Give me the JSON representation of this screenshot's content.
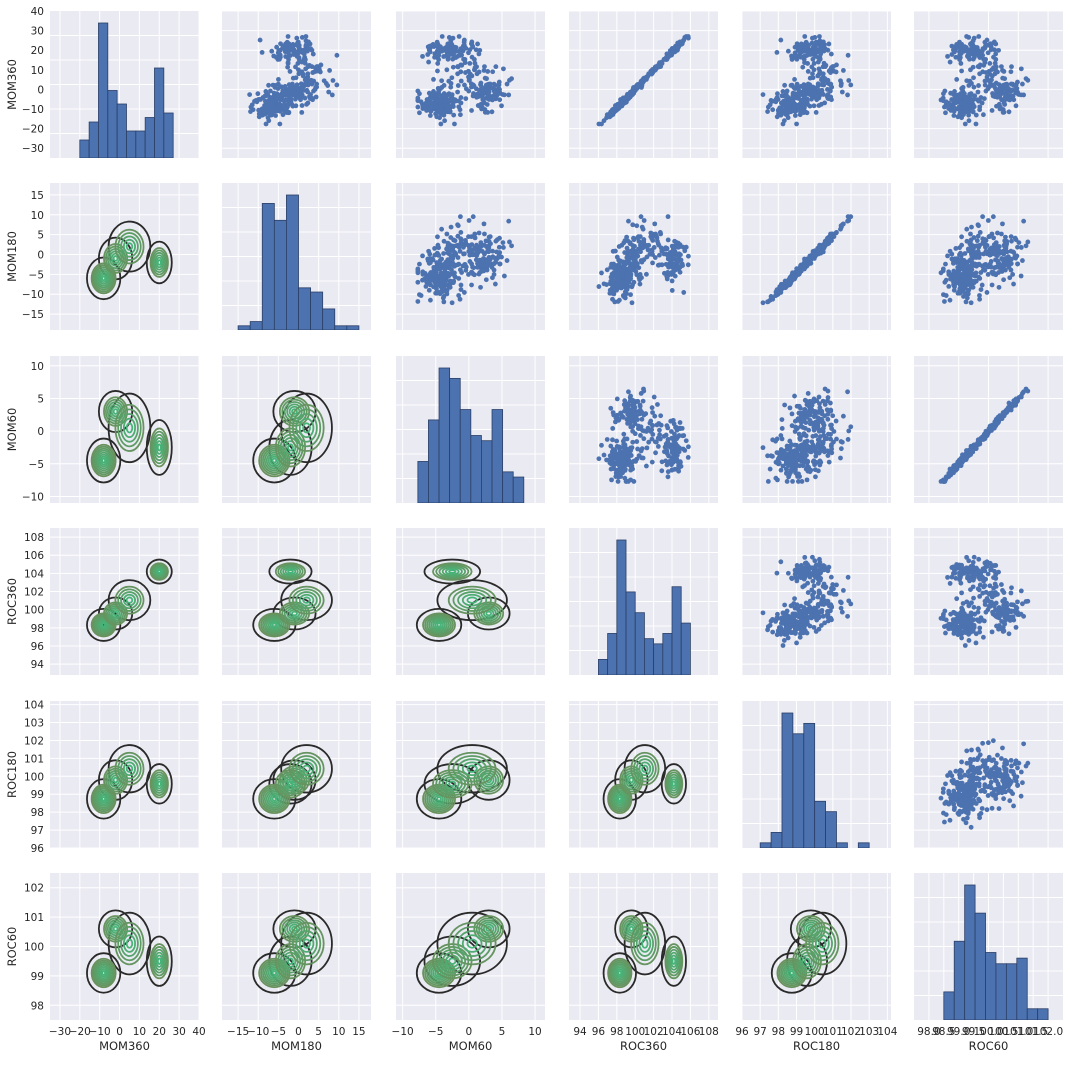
{
  "figure": {
    "type": "pairplot",
    "background": "#ffffff",
    "panel_bg": "#eaeaf2",
    "grid_color": "#ffffff"
  },
  "colors": {
    "scatter": "#4c72b0",
    "hist_fill": "#4c72b0",
    "hist_edge": "#2b3f66",
    "kde_inner": "#55a868",
    "kde_outer": "#2a2a2a"
  },
  "chart_data": {
    "type": "pairplot",
    "variables": [
      "MOM360",
      "MOM180",
      "MOM60",
      "ROC360",
      "ROC180",
      "ROC60"
    ],
    "upper_triangle": "scatter",
    "diagonal": "histogram",
    "lower_triangle": "kde_contour",
    "axes": [
      {
        "name": "MOM360",
        "lim": [
          -35,
          40
        ],
        "ticks": [
          "−30",
          "−20",
          "−10",
          "0",
          "10",
          "20",
          "30",
          "40"
        ],
        "tick_values": [
          -30,
          -20,
          -10,
          0,
          10,
          20,
          30,
          40
        ]
      },
      {
        "name": "MOM180",
        "lim": [
          -19,
          18
        ],
        "ticks": [
          "−15",
          "−10",
          "−5",
          "0",
          "5",
          "10",
          "15"
        ],
        "tick_values": [
          -15,
          -10,
          -5,
          0,
          5,
          10,
          15
        ]
      },
      {
        "name": "MOM60",
        "lim": [
          -11,
          11.5
        ],
        "ticks": [
          "−10",
          "−5",
          "0",
          "5",
          "10"
        ],
        "tick_values": [
          -10,
          -5,
          0,
          5,
          10
        ]
      },
      {
        "name": "ROC360",
        "lim": [
          92.8,
          109
        ],
        "ticks": [
          "94",
          "96",
          "98",
          "100",
          "102",
          "104",
          "106",
          "108"
        ],
        "tick_values": [
          94,
          96,
          98,
          100,
          102,
          104,
          106,
          108
        ]
      },
      {
        "name": "ROC180",
        "lim": [
          96,
          104.2
        ],
        "ticks": [
          "96",
          "97",
          "98",
          "99",
          "100",
          "101",
          "102",
          "103",
          "104"
        ],
        "tick_values": [
          96,
          97,
          98,
          99,
          100,
          101,
          102,
          103,
          104
        ]
      },
      {
        "name": "ROC60",
        "lim": [
          97.5,
          102.5
        ],
        "ticks": [
          "98",
          "99",
          "100",
          "101",
          "102"
        ],
        "tick_values": [
          98,
          99,
          100,
          101,
          102
        ]
      }
    ],
    "row_ticks": {
      "MOM360": [
        "40",
        "30",
        "20",
        "10",
        "0",
        "−10",
        "−20",
        "−30"
      ],
      "MOM180": [
        "15",
        "10",
        "5",
        "0",
        "−5",
        "−10",
        "−15"
      ],
      "MOM60": [
        "10",
        "5",
        "0",
        "−5",
        "−10"
      ],
      "ROC360": [
        "108",
        "106",
        "104",
        "102",
        "100",
        "98",
        "96",
        "94"
      ],
      "ROC180": [
        "104",
        "103",
        "102",
        "101",
        "100",
        "99",
        "98",
        "97",
        "96"
      ],
      "ROC60": [
        "102",
        "101",
        "100",
        "99",
        "98"
      ]
    },
    "bottom_ticks": {
      "MOM360": [
        "−30",
        "−20",
        "−10",
        "0",
        "10",
        "20",
        "30",
        "40"
      ],
      "MOM180": [
        "−15",
        "−10",
        "−5",
        "0",
        "5",
        "10",
        "15"
      ],
      "MOM60": [
        "−10",
        "−5",
        "0",
        "5",
        "10"
      ],
      "ROC360": [
        "94",
        "96",
        "98",
        "100",
        "102",
        "104",
        "106",
        "108"
      ],
      "ROC180": [
        "96",
        "97",
        "98",
        "99",
        "100",
        "101",
        "102",
        "103",
        "104"
      ],
      "ROC60": [
        "98.0",
        "98.5",
        "99.0",
        "99.5",
        "100.0",
        "100.5",
        "101.0",
        "101.5",
        "102.0"
      ]
    },
    "bottom_tick_values": {
      "ROC60": [
        98.0,
        98.5,
        99.0,
        99.5,
        100.0,
        100.5,
        101.0,
        101.5,
        102.0
      ]
    },
    "histograms": {
      "MOM360": {
        "edges": [
          -20,
          -15.3,
          -10.6,
          -5.9,
          -1.2,
          3.5,
          8.2,
          12.9,
          17.6,
          22.3,
          27
        ],
        "counts": [
          4,
          8,
          30,
          15,
          12,
          6,
          6,
          9,
          20,
          10
        ]
      },
      "MOM180": {
        "edges": [
          -15,
          -12,
          -9,
          -6,
          -3,
          0,
          3,
          6,
          9,
          12,
          15
        ],
        "counts": [
          1,
          2,
          30,
          26,
          32,
          10,
          9,
          5,
          1,
          1
        ]
      },
      "MOM60": {
        "edges": [
          -7.7,
          -6.1,
          -4.5,
          -2.9,
          -1.3,
          0.3,
          1.9,
          3.5,
          5.1,
          6.7,
          8.3
        ],
        "counts": [
          8,
          16,
          26,
          24,
          18,
          13,
          12,
          18,
          6,
          5
        ]
      },
      "ROC360": {
        "edges": [
          96,
          97,
          98,
          99,
          100,
          101,
          102,
          103,
          104,
          105,
          106
        ],
        "counts": [
          3,
          8,
          26,
          16,
          12,
          7,
          6,
          8,
          17,
          10
        ]
      },
      "ROC180": {
        "edges": [
          97,
          97.6,
          98.2,
          98.8,
          99.4,
          100,
          100.6,
          101.2,
          101.8,
          102.4,
          103
        ],
        "counts": [
          1,
          3,
          26,
          22,
          24,
          9,
          7,
          1,
          0,
          1
        ]
      },
      "ROC60": {
        "edges": [
          98.5,
          98.85,
          99.2,
          99.55,
          99.9,
          100.25,
          100.6,
          100.95,
          101.3,
          101.65,
          102
        ],
        "counts": [
          5,
          14,
          24,
          19,
          12,
          10,
          10,
          11,
          2,
          2
        ]
      }
    }
  }
}
